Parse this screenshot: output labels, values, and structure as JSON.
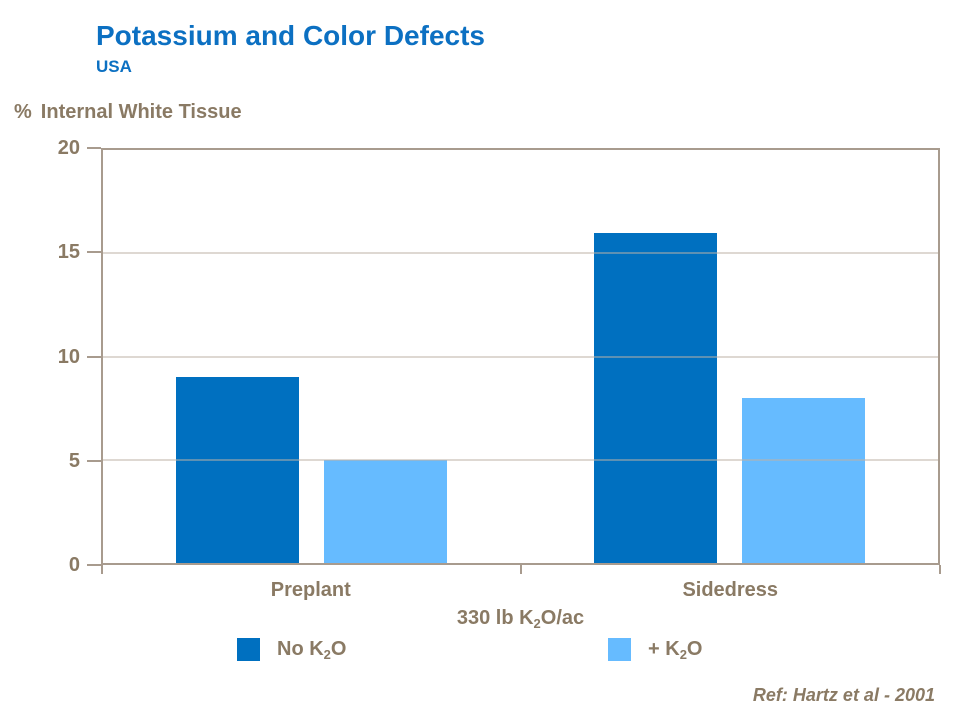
{
  "slide": {
    "title": "Potassium and Color Defects",
    "subtitle": "USA",
    "reference": "Ref: Hartz et al - 2001"
  },
  "labels": {
    "ylabel_symbol": "%",
    "ylabel_text": "Internal White Tissue",
    "xlabel_pre": "330 lb K",
    "xlabel_sub": "2",
    "xlabel_post": "O/ac"
  },
  "legend": [
    {
      "pre": "No K",
      "sub": "2",
      "post": "O",
      "color": "#0070C0"
    },
    {
      "pre": "+ K",
      "sub": "2",
      "post": "O",
      "color": "#66BBFF"
    }
  ],
  "colors": {
    "title_blue": "#0C70C2",
    "dark_bar": "#0070C0",
    "light_bar": "#66BBFF",
    "text_brown": "#8A7A64",
    "axis_line": "#A89B8E",
    "gridline": "#BDB2A6"
  },
  "chart_data": {
    "type": "bar",
    "title": "Potassium and Color Defects",
    "subtitle": "USA",
    "ylabel": "% Internal White Tissue",
    "xlabel": "330 lb K2O/ac",
    "categories": [
      "Preplant",
      "Sidedress"
    ],
    "series": [
      {
        "name": "No K2O",
        "color": "#0070C0",
        "values": [
          9,
          16
        ]
      },
      {
        "name": "+ K2O",
        "color": "#66BBFF",
        "values": [
          5,
          8
        ]
      }
    ],
    "ylim": [
      0,
      20
    ],
    "yticks": [
      0,
      5,
      10,
      15,
      20
    ],
    "grid": "horizontal",
    "legend_position": "below",
    "annotation": "Ref: Hartz et al - 2001"
  }
}
